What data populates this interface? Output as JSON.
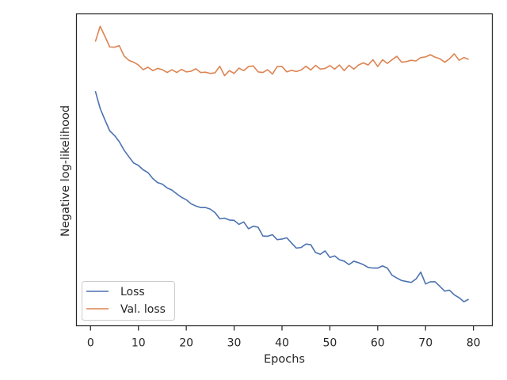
{
  "chart_data": {
    "type": "line",
    "title": "",
    "xlabel": "Epochs",
    "ylabel": "Negative log-likelihood",
    "xlim": [
      -2.95,
      83.95
    ],
    "x_ticks": [
      0,
      10,
      20,
      30,
      40,
      50,
      60,
      70,
      80
    ],
    "y_ticks_shown": false,
    "ylim": [
      0.0,
      1.0
    ],
    "grid": false,
    "legend": {
      "position": "lower-left"
    },
    "x": [
      1,
      2,
      3,
      4,
      5,
      6,
      7,
      8,
      9,
      10,
      11,
      12,
      13,
      14,
      15,
      16,
      17,
      18,
      19,
      20,
      21,
      22,
      23,
      24,
      25,
      26,
      27,
      28,
      29,
      30,
      31,
      32,
      33,
      34,
      35,
      36,
      37,
      38,
      39,
      40,
      41,
      42,
      43,
      44,
      45,
      46,
      47,
      48,
      49,
      50,
      51,
      52,
      53,
      54,
      55,
      56,
      57,
      58,
      59,
      60,
      61,
      62,
      63,
      64,
      65,
      66,
      67,
      68,
      69,
      70,
      71,
      72,
      73,
      74,
      75,
      76,
      77,
      78,
      79
    ],
    "series": [
      {
        "name": "Loss",
        "color": "#4c72b0",
        "values": [
          0.752,
          0.697,
          0.66,
          0.625,
          0.61,
          0.59,
          0.563,
          0.542,
          0.522,
          0.514,
          0.5,
          0.491,
          0.472,
          0.459,
          0.454,
          0.442,
          0.435,
          0.423,
          0.412,
          0.404,
          0.391,
          0.384,
          0.379,
          0.379,
          0.374,
          0.363,
          0.343,
          0.345,
          0.339,
          0.338,
          0.325,
          0.333,
          0.311,
          0.319,
          0.316,
          0.288,
          0.287,
          0.292,
          0.276,
          0.278,
          0.282,
          0.265,
          0.249,
          0.251,
          0.262,
          0.26,
          0.235,
          0.229,
          0.24,
          0.219,
          0.224,
          0.212,
          0.207,
          0.196,
          0.207,
          0.202,
          0.196,
          0.187,
          0.185,
          0.185,
          0.192,
          0.185,
          0.162,
          0.153,
          0.145,
          0.142,
          0.139,
          0.15,
          0.172,
          0.134,
          0.141,
          0.141,
          0.126,
          0.111,
          0.114,
          0.099,
          0.09,
          0.077,
          0.085
        ]
      },
      {
        "name": "Val. loss",
        "color": "#dd8452",
        "values": [
          0.911,
          0.96,
          0.928,
          0.894,
          0.893,
          0.898,
          0.865,
          0.851,
          0.845,
          0.836,
          0.821,
          0.829,
          0.818,
          0.825,
          0.821,
          0.812,
          0.821,
          0.812,
          0.822,
          0.814,
          0.816,
          0.824,
          0.812,
          0.813,
          0.809,
          0.811,
          0.832,
          0.802,
          0.818,
          0.809,
          0.826,
          0.818,
          0.831,
          0.833,
          0.814,
          0.812,
          0.821,
          0.807,
          0.831,
          0.831,
          0.814,
          0.819,
          0.815,
          0.82,
          0.832,
          0.82,
          0.835,
          0.823,
          0.825,
          0.834,
          0.823,
          0.836,
          0.818,
          0.835,
          0.823,
          0.836,
          0.843,
          0.836,
          0.853,
          0.831,
          0.853,
          0.841,
          0.853,
          0.864,
          0.845,
          0.847,
          0.851,
          0.849,
          0.86,
          0.862,
          0.869,
          0.861,
          0.856,
          0.845,
          0.856,
          0.872,
          0.851,
          0.86,
          0.854
        ]
      }
    ]
  }
}
